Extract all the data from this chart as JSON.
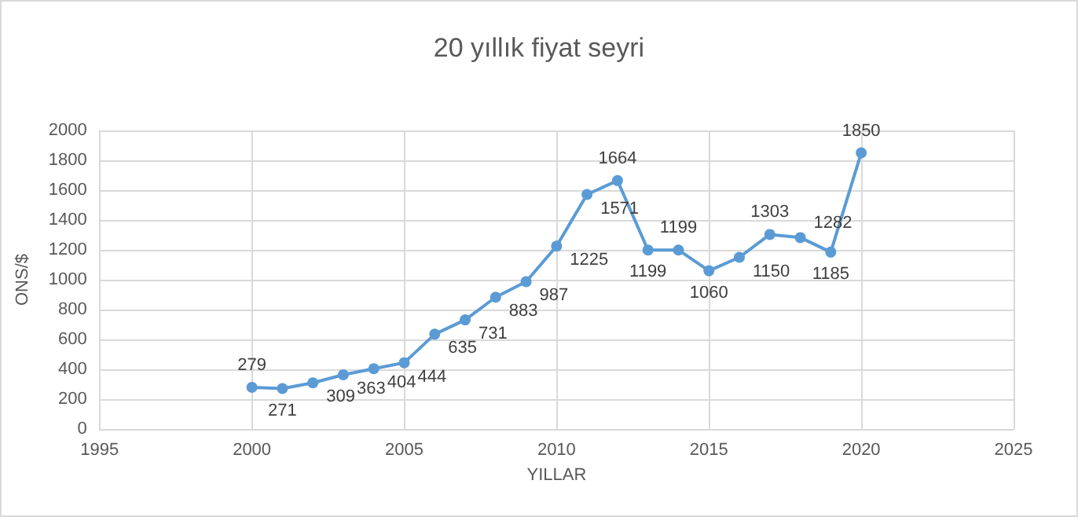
{
  "chart_data": {
    "type": "line",
    "title": "20 yıllık fiyat seyri",
    "xlabel": "YILLAR",
    "ylabel": "ONS/$",
    "x": [
      2000,
      2001,
      2002,
      2003,
      2004,
      2005,
      2006,
      2007,
      2008,
      2009,
      2010,
      2011,
      2012,
      2013,
      2014,
      2015,
      2016,
      2017,
      2018,
      2019,
      2020
    ],
    "series": [
      {
        "color": "#5b9bd5",
        "values": [
          279,
          271,
          309,
          363,
          404,
          444,
          635,
          731,
          883,
          987,
          1225,
          1571,
          1664,
          1199,
          1199,
          1060,
          1150,
          1303,
          1282,
          1185,
          1850
        ]
      }
    ],
    "xlim": [
      1995,
      2025
    ],
    "xticks": [
      1995,
      2000,
      2005,
      2010,
      2015,
      2020,
      2025
    ],
    "ylim": [
      0,
      2000
    ],
    "yticks": [
      0,
      200,
      400,
      600,
      800,
      1000,
      1200,
      1400,
      1600,
      1800,
      2000
    ],
    "grid": true,
    "marker": "circle",
    "line_style": "solid",
    "data_labels": true
  }
}
